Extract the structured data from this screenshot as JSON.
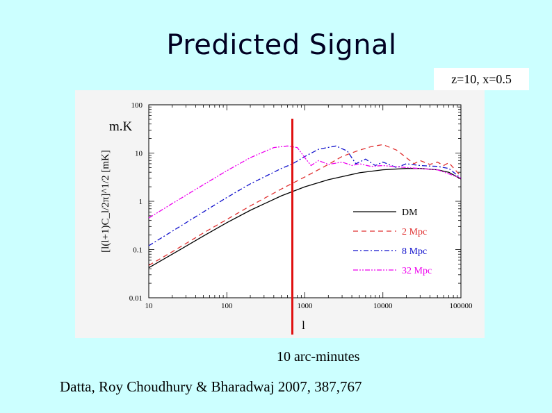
{
  "slide": {
    "title": "Predicted Signal",
    "params": "z=10,  x=0.5",
    "unit_label": "m.K",
    "marker_label": "10 arc-minutes",
    "citation": "Datta, Roy Choudhury & Bharadwaj 2007, 387,767"
  },
  "colors": {
    "background": "#ccffff",
    "marker": "#e01010",
    "DM": "#000000",
    "2 Mpc": "#e03030",
    "8 Mpc": "#1010cc",
    "32 Mpc": "#ee00ee"
  },
  "chart_data": {
    "type": "line",
    "xscale": "log",
    "yscale": "log",
    "xlim": [
      10,
      100000
    ],
    "ylim": [
      0.01,
      100
    ],
    "xlabel": "l",
    "ylabel": "[l(l+1)C_l/2π]^1/2  [mK]",
    "x_ticks": [
      "10",
      "100",
      "1000",
      "10000",
      "100000"
    ],
    "y_ticks": [
      "0.01",
      "0.1",
      "1",
      "10",
      "100"
    ],
    "marker_x": 700,
    "legend_position": "bottom-right",
    "series": [
      {
        "name": "DM",
        "style": "solid",
        "x": [
          10,
          20,
          50,
          100,
          200,
          500,
          1000,
          2000,
          5000,
          10000,
          20000,
          30000,
          50000,
          70000,
          100000
        ],
        "y": [
          0.042,
          0.08,
          0.19,
          0.36,
          0.65,
          1.3,
          2.0,
          2.8,
          3.9,
          4.5,
          4.8,
          4.8,
          4.5,
          4.0,
          2.9
        ]
      },
      {
        "name": "2 Mpc",
        "style": "dashed",
        "x": [
          10,
          20,
          50,
          100,
          200,
          500,
          1000,
          2000,
          3000,
          5000,
          7000,
          10000,
          15000,
          20000,
          25000,
          30000,
          40000,
          50000,
          60000,
          70000,
          100000
        ],
        "y": [
          0.047,
          0.09,
          0.22,
          0.42,
          0.8,
          1.8,
          3.2,
          5.8,
          8.5,
          11.5,
          13.5,
          15.0,
          11.5,
          8.0,
          6.0,
          7.0,
          5.8,
          6.5,
          5.5,
          6.3,
          3.3
        ]
      },
      {
        "name": "8 Mpc",
        "style": "dashdot",
        "x": [
          10,
          20,
          50,
          100,
          200,
          500,
          700,
          1000,
          1500,
          2500,
          3500,
          4500,
          6000,
          8000,
          10000,
          15000,
          20000,
          30000,
          50000,
          70000,
          100000
        ],
        "y": [
          0.12,
          0.24,
          0.6,
          1.2,
          2.3,
          4.8,
          6.0,
          8.5,
          12.0,
          14.0,
          11.0,
          6.0,
          7.5,
          5.5,
          6.5,
          5.0,
          6.0,
          5.5,
          5.3,
          4.8,
          3.0
        ]
      },
      {
        "name": "32 Mpc",
        "style": "dashdotdot",
        "x": [
          10,
          20,
          50,
          100,
          200,
          400,
          600,
          800,
          1000,
          1200,
          1500,
          2000,
          3000,
          4000,
          5000,
          7000,
          10000,
          20000,
          50000,
          100000
        ],
        "y": [
          0.45,
          0.9,
          2.2,
          4.3,
          8.0,
          13.0,
          14.0,
          13.0,
          8.0,
          5.5,
          7.0,
          5.8,
          6.5,
          5.5,
          6.0,
          5.3,
          5.5,
          5.0,
          4.5,
          3.0
        ]
      }
    ]
  }
}
